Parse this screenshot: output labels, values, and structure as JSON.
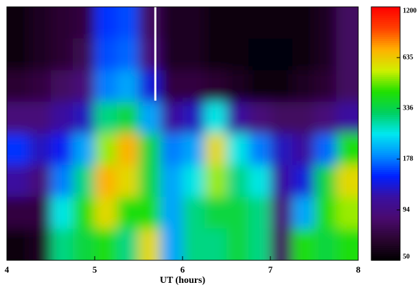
{
  "chart_data": {
    "type": "heatmap",
    "x_label": "UT (hours)",
    "xlim": [
      4,
      8
    ],
    "xticks": [
      4,
      5,
      6,
      7,
      8
    ],
    "zlim": [
      50,
      1200
    ],
    "zticks": [
      50,
      94,
      178,
      336,
      635,
      1200
    ],
    "z_log": true,
    "colormap": [
      "#000000",
      "#2a0530",
      "#4a0a6e",
      "#3a10a0",
      "#0020ff",
      "#0090ff",
      "#00e8f0",
      "#00d060",
      "#20e000",
      "#d0f000",
      "#ffb000",
      "#ff4000",
      "#ff0000"
    ],
    "marker_x": 5.69,
    "marker_color": "#ffffff",
    "z": [
      [
        55,
        60,
        65,
        70,
        150,
        160,
        80,
        60,
        60,
        55,
        55,
        55,
        55,
        55,
        60,
        80
      ],
      [
        55,
        60,
        65,
        75,
        160,
        170,
        90,
        60,
        60,
        55,
        55,
        52,
        52,
        55,
        60,
        80
      ],
      [
        65,
        70,
        80,
        90,
        180,
        200,
        130,
        70,
        70,
        65,
        60,
        55,
        55,
        60,
        65,
        80
      ],
      [
        90,
        90,
        110,
        120,
        300,
        350,
        200,
        110,
        120,
        250,
        110,
        90,
        80,
        80,
        90,
        110
      ],
      [
        150,
        120,
        140,
        200,
        500,
        700,
        350,
        180,
        200,
        600,
        250,
        180,
        120,
        110,
        170,
        400
      ],
      [
        110,
        90,
        180,
        300,
        700,
        600,
        350,
        200,
        250,
        500,
        300,
        250,
        110,
        130,
        350,
        600
      ],
      [
        70,
        70,
        250,
        400,
        600,
        400,
        400,
        200,
        300,
        350,
        350,
        300,
        90,
        200,
        400,
        500
      ],
      [
        55,
        60,
        300,
        350,
        400,
        300,
        600,
        200,
        300,
        300,
        350,
        300,
        80,
        400,
        350,
        400
      ]
    ]
  }
}
